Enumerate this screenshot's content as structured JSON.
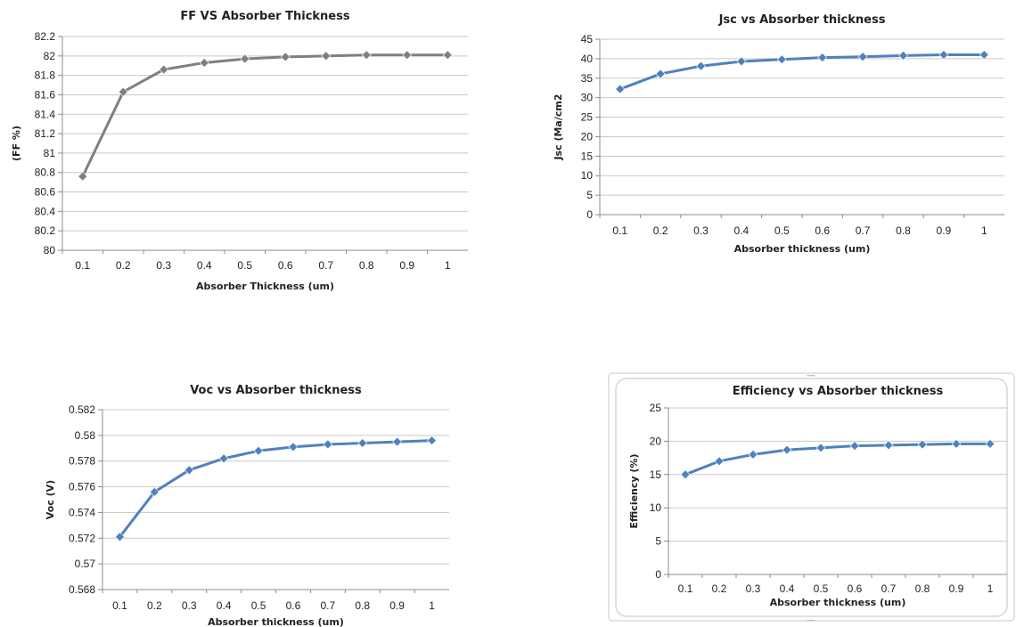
{
  "chart_data": [
    {
      "type": "line",
      "title": "FF VS Absorber Thickness",
      "xlabel": "Absorber Thickness (um)",
      "ylabel": "(FF %)",
      "categories": [
        "0.1",
        "0.2",
        "0.3",
        "0.4",
        "0.5",
        "0.6",
        "0.7",
        "0.8",
        "0.9",
        "1"
      ],
      "yticks": [
        "80",
        "80.2",
        "80.4",
        "80.6",
        "80.8",
        "81",
        "81.2",
        "81.4",
        "81.6",
        "81.8",
        "82",
        "82.2"
      ],
      "ylim": [
        80,
        82.2
      ],
      "grid": true,
      "series": [
        {
          "values": [
            80.76,
            81.63,
            81.86,
            81.93,
            81.97,
            81.99,
            82.0,
            82.01,
            82.01,
            82.01
          ],
          "color": "#7f7f7f"
        }
      ]
    },
    {
      "type": "line",
      "title": "Jsc vs Absorber thickness",
      "xlabel": "Absorber thickness (um)",
      "ylabel": "Jsc (Ma/cm2",
      "categories": [
        "0.1",
        "0.2",
        "0.3",
        "0.4",
        "0.5",
        "0.6",
        "0.7",
        "0.8",
        "0.9",
        "1"
      ],
      "yticks": [
        "0",
        "5",
        "10",
        "15",
        "20",
        "25",
        "30",
        "35",
        "40",
        "45"
      ],
      "ylim": [
        0,
        45
      ],
      "grid": true,
      "series": [
        {
          "values": [
            32.2,
            36.1,
            38.1,
            39.3,
            39.8,
            40.3,
            40.5,
            40.8,
            41.0,
            41.0
          ],
          "color": "#4f81bd"
        }
      ]
    },
    {
      "type": "line",
      "title": "Voc vs Absorber thickness",
      "xlabel": "Absorber  thickness (um)",
      "ylabel": "Voc (V)",
      "categories": [
        "0.1",
        "0.2",
        "0.3",
        "0.4",
        "0.5",
        "0.6",
        "0.7",
        "0.8",
        "0.9",
        "1"
      ],
      "yticks": [
        "0.568",
        "0.57",
        "0.572",
        "0.574",
        "0.576",
        "0.578",
        "0.58",
        "0.582"
      ],
      "ylim": [
        0.568,
        0.582
      ],
      "grid": true,
      "series": [
        {
          "values": [
            0.5721,
            0.5756,
            0.5773,
            0.5782,
            0.5788,
            0.5791,
            0.5793,
            0.5794,
            0.5795,
            0.5796
          ],
          "color": "#4f81bd"
        }
      ]
    },
    {
      "type": "line",
      "title": "Efficiency vs Absorber thickness",
      "xlabel": "Absorber thickness (um)",
      "ylabel": "Efficiency (%)",
      "categories": [
        "0.1",
        "0.2",
        "0.3",
        "0.4",
        "0.5",
        "0.6",
        "0.7",
        "0.8",
        "0.9",
        "1"
      ],
      "yticks": [
        "0",
        "5",
        "10",
        "15",
        "20",
        "25"
      ],
      "ylim": [
        0,
        25
      ],
      "grid": true,
      "series": [
        {
          "values": [
            15.0,
            17.0,
            18.0,
            18.7,
            19.0,
            19.3,
            19.4,
            19.5,
            19.6,
            19.6
          ],
          "color": "#4f81bd"
        }
      ]
    }
  ]
}
